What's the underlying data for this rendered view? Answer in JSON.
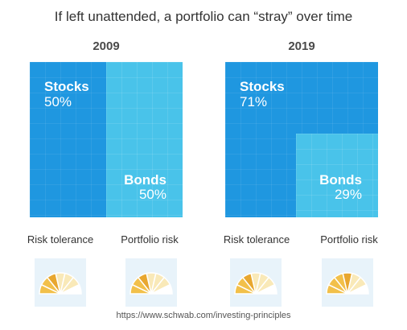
{
  "chart_data": {
    "type": "table",
    "title": "If left unattended, a portfolio can “stray” over time",
    "panels": [
      {
        "year": "2009",
        "series": [
          {
            "name": "Stocks",
            "label": "50%",
            "value": 50
          },
          {
            "name": "Bonds",
            "label": "50%",
            "value": 50
          }
        ],
        "gauges": [
          {
            "caption": "Risk tolerance",
            "level": 3,
            "segments": 7
          },
          {
            "caption": "Portfolio risk",
            "level": 3,
            "segments": 7
          }
        ]
      },
      {
        "year": "2019",
        "series": [
          {
            "name": "Stocks",
            "label": "71%",
            "value": 71
          },
          {
            "name": "Bonds",
            "label": "29%",
            "value": 29
          }
        ],
        "gauges": [
          {
            "caption": "Risk tolerance",
            "level": 3,
            "segments": 7
          },
          {
            "caption": "Portfolio risk",
            "level": 4,
            "segments": 7
          }
        ]
      }
    ],
    "source": "https://www.schwab.com/investing-principles"
  },
  "colors": {
    "stocks": "#1f97e0",
    "bonds": "#49c3ea",
    "gauge_active": "#f2c04a",
    "gauge_inactive": "#f9e9b8",
    "gauge_bg": "#e8f3fa"
  }
}
